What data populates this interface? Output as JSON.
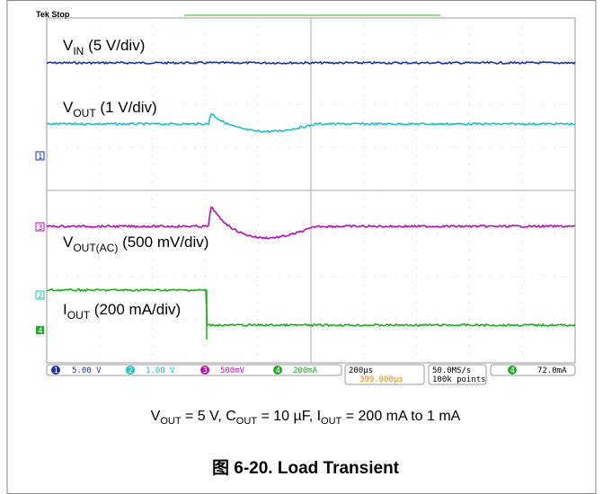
{
  "scope": {
    "status": "Tek Stop",
    "labels": [
      [
        "V",
        "IN",
        " (5 V/div)"
      ],
      [
        "V",
        "OUT",
        " (1 V/div)"
      ],
      [
        "V",
        "OUT(AC)",
        " (500 mV/div)"
      ],
      [
        "I",
        "OUT",
        " (200 mA/div)"
      ]
    ],
    "channels": [
      {
        "num": "1",
        "scale": "5.00 V"
      },
      {
        "num": "2",
        "scale": "1.00 V"
      },
      {
        "num": "3",
        "scale": "500mV"
      },
      {
        "num": "4",
        "scale": "200mA"
      }
    ],
    "timebase": "200µs",
    "delay": "399.000µs",
    "sample_rate": "50.0MS/s",
    "record": "100k points",
    "trigger": {
      "num": "4",
      "level": "72.0mA"
    }
  },
  "caption": [
    "V",
    "OUT",
    " = 5 V, C",
    "OUT",
    " = 10 µF, I",
    "OUT",
    " = 200 mA to 1 mA"
  ],
  "figure_title": "图 6-20. Load Transient"
}
